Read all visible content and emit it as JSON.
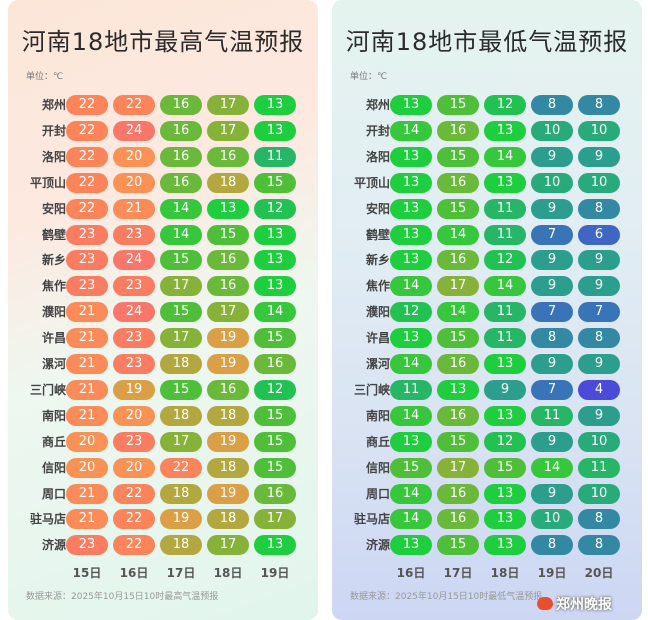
{
  "chart_data": [
    {
      "type": "table",
      "title": "河南18地市最高气温预报",
      "unit_label": "单位：℃",
      "source": "数据来源：2025年10月15日10时最高气温预报",
      "days": [
        "15日",
        "16日",
        "17日",
        "18日",
        "19日"
      ],
      "cities": [
        "郑州",
        "开封",
        "洛阳",
        "平顶山",
        "安阳",
        "鹤壁",
        "新乡",
        "焦作",
        "濮阳",
        "许昌",
        "漯河",
        "三门峡",
        "南阳",
        "商丘",
        "信阳",
        "周口",
        "驻马店",
        "济源"
      ],
      "values": [
        [
          22,
          22,
          16,
          17,
          13
        ],
        [
          22,
          24,
          16,
          17,
          13
        ],
        [
          22,
          20,
          16,
          16,
          11
        ],
        [
          22,
          20,
          16,
          18,
          15
        ],
        [
          22,
          21,
          14,
          13,
          12
        ],
        [
          23,
          23,
          14,
          15,
          13
        ],
        [
          23,
          24,
          15,
          16,
          13
        ],
        [
          23,
          23,
          17,
          16,
          13
        ],
        [
          21,
          24,
          15,
          17,
          14
        ],
        [
          21,
          23,
          17,
          19,
          15
        ],
        [
          21,
          23,
          18,
          19,
          16
        ],
        [
          21,
          19,
          15,
          16,
          12
        ],
        [
          21,
          20,
          18,
          18,
          15
        ],
        [
          20,
          23,
          17,
          19,
          15
        ],
        [
          20,
          20,
          22,
          18,
          15
        ],
        [
          21,
          22,
          18,
          19,
          16
        ],
        [
          21,
          22,
          19,
          18,
          17
        ],
        [
          23,
          22,
          18,
          17,
          13
        ]
      ]
    },
    {
      "type": "table",
      "title": "河南18地市最低气温预报",
      "unit_label": "单位：℃",
      "source": "数据来源：2025年10月15日10时最低气温预报",
      "days": [
        "16日",
        "17日",
        "18日",
        "19日",
        "20日"
      ],
      "cities": [
        "郑州",
        "开封",
        "洛阳",
        "平顶山",
        "安阳",
        "鹤壁",
        "新乡",
        "焦作",
        "濮阳",
        "许昌",
        "漯河",
        "三门峡",
        "南阳",
        "商丘",
        "信阳",
        "周口",
        "驻马店",
        "济源"
      ],
      "values": [
        [
          13,
          15,
          12,
          8,
          8
        ],
        [
          14,
          16,
          13,
          10,
          10
        ],
        [
          13,
          15,
          14,
          9,
          9
        ],
        [
          13,
          16,
          13,
          10,
          10
        ],
        [
          13,
          15,
          11,
          9,
          8
        ],
        [
          13,
          14,
          11,
          7,
          6
        ],
        [
          13,
          16,
          12,
          9,
          9
        ],
        [
          14,
          17,
          14,
          9,
          9
        ],
        [
          12,
          14,
          11,
          7,
          7
        ],
        [
          13,
          15,
          11,
          8,
          8
        ],
        [
          14,
          16,
          13,
          9,
          9
        ],
        [
          11,
          13,
          9,
          7,
          4
        ],
        [
          14,
          16,
          13,
          11,
          9
        ],
        [
          13,
          15,
          12,
          9,
          10
        ],
        [
          15,
          17,
          15,
          14,
          11
        ],
        [
          14,
          16,
          13,
          9,
          10
        ],
        [
          14,
          16,
          13,
          10,
          8
        ],
        [
          13,
          15,
          13,
          8,
          8
        ]
      ]
    }
  ],
  "colors": {
    "hot_24": "#f8766a",
    "warm_22": "#fb845a",
    "warm_20": "#fa9256",
    "mild_19": "#dba045",
    "mild_18": "#b2a83f",
    "mild_17": "#87b23a",
    "cool_15": "#4fbf3a",
    "cool_13": "#1fce3e",
    "cold_9": "#2c9e8e",
    "cold_7": "#3a74b8",
    "cold_4": "#4a4bd8"
  },
  "watermark": "郑州晚报"
}
